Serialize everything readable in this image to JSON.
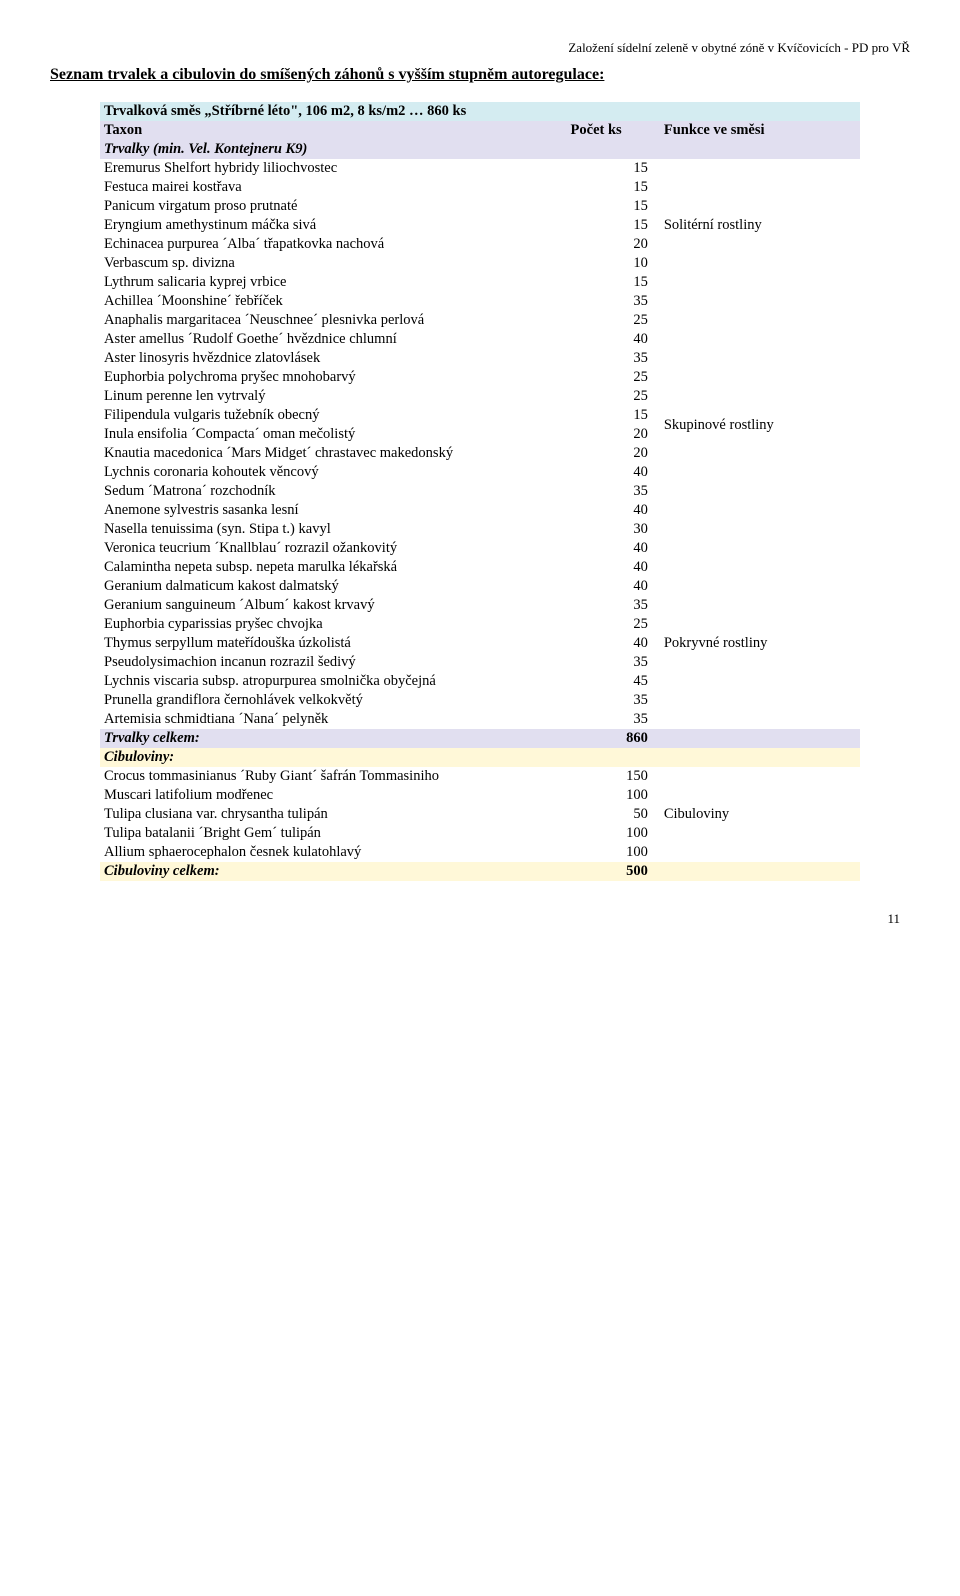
{
  "topRight": "Založení sídelní zeleně v obytné zóně v Kvíčovicích - PD pro VŘ",
  "heading": "Seznam trvalek a cibulovin do smíšených záhonů s vyšším stupněm autoregulace:",
  "colors": {
    "lightBlue": "#d4ecf1",
    "lavender": "#e1dff0",
    "lightYellow": "#fff8d8",
    "text": "#000000",
    "bg": "#ffffff"
  },
  "table": {
    "titleRow": {
      "text": "Trvalková směs „Stříbrné léto\", 106 m2, 8 ks/m2 … 860 ks",
      "bg": "#d4ecf1"
    },
    "headerRow": {
      "c1": "Taxon",
      "c2": "Počet ks",
      "c3": "Funkce ve směsi",
      "bg": "#e1dff0"
    },
    "group1": {
      "preRow": {
        "text": "Trvalky (min. Vel. Kontejneru K9)",
        "italicBold": true,
        "bg": "#e1dff0"
      },
      "rows": [
        {
          "name": "Eremurus Shelfort hybridy liliochvostec",
          "qty": "15"
        },
        {
          "name": "Festuca mairei kostřava",
          "qty": "15"
        },
        {
          "name": "Panicum virgatum proso prutnaté",
          "qty": "15"
        },
        {
          "name": "Eryngium amethystinum máčka sivá",
          "qty": "15"
        },
        {
          "name": "Echinacea purpurea ´Alba´ třapatkovka nachová",
          "qty": "20"
        },
        {
          "name": "Verbascum sp. divizna",
          "qty": "10"
        },
        {
          "name": "Lythrum salicaria kyprej vrbice",
          "qty": "15"
        }
      ],
      "label": "Solitérní rostliny",
      "labelRowIndex": 3
    },
    "group2": {
      "rows": [
        {
          "name": "Achillea ´Moonshine´ řebříček",
          "qty": "35"
        },
        {
          "name": "Anaphalis margaritacea ´Neuschnee´ plesnivka perlová",
          "qty": "25"
        },
        {
          "name": "Aster amellus ´Rudolf Goethe´ hvězdnice chlumní",
          "qty": "40"
        },
        {
          "name": "Aster linosyris hvězdnice zlatovlásek",
          "qty": "35"
        },
        {
          "name": "Euphorbia polychroma pryšec mnohobarvý",
          "qty": "25"
        },
        {
          "name": "Linum perenne len vytrvalý",
          "qty": "25"
        },
        {
          "name": "Filipendula vulgaris tužebník obecný",
          "qty": "15"
        },
        {
          "name": "Inula ensifolia ´Compacta´ oman mečolistý",
          "qty": "20"
        },
        {
          "name": "Knautia macedonica ´Mars Midget´ chrastavec makedonský",
          "qty": "20"
        },
        {
          "name": "Lychnis coronaria kohoutek věncový",
          "qty": "40"
        },
        {
          "name": "Sedum ´Matrona´ rozchodník",
          "qty": "35"
        },
        {
          "name": "Anemone sylvestris sasanka lesní",
          "qty": "40"
        },
        {
          "name": "Nasella tenuissima (syn. Stipa t.) kavyl",
          "qty": "30"
        },
        {
          "name": "Veronica teucrium ´Knallblau´ rozrazil ožankovitý",
          "qty": "40"
        }
      ],
      "label": "Skupinové rostliny",
      "labelRowIndex": 7
    },
    "group3": {
      "rows": [
        {
          "name": "Calamintha nepeta subsp. nepeta marulka lékařská",
          "qty": "40"
        },
        {
          "name": "Geranium dalmaticum kakost dalmatský",
          "qty": "40"
        },
        {
          "name": "Geranium sanguineum ´Album´ kakost krvavý",
          "qty": "35"
        },
        {
          "name": "Euphorbia cyparissias pryšec chvojka",
          "qty": "25"
        },
        {
          "name": "Thymus serpyllum mateřídouška úzkolistá",
          "qty": "40"
        },
        {
          "name": "Pseudolysimachion incanun rozrazil šedivý",
          "qty": "35"
        },
        {
          "name": "Lychnis viscaria subsp. atropurpurea smolnička obyčejná",
          "qty": "45"
        },
        {
          "name": "Prunella grandiflora černohlávek velkokvětý",
          "qty": "35"
        },
        {
          "name": "Artemisia schmidtiana ´Nana´ pelyněk",
          "qty": "35"
        }
      ],
      "label": "Pokryvné rostliny",
      "labelRowIndex": 4
    },
    "trvalkyTotal": {
      "label": "Trvalky celkem:",
      "qty": "860",
      "bg": "#e1dff0"
    },
    "cibulHeader": {
      "label": "Cibuloviny:",
      "bg": "#fff8d8"
    },
    "group4": {
      "rows": [
        {
          "name": "Crocus tommasinianus ´Ruby Giant´ šafrán Tommasiniho",
          "qty": "150"
        },
        {
          "name": "Muscari latifolium modřenec",
          "qty": "100"
        },
        {
          "name": "Tulipa clusiana var. chrysantha tulipán",
          "qty": "50"
        },
        {
          "name": "Tulipa batalanii ´Bright Gem´ tulipán",
          "qty": "100"
        },
        {
          "name": "Allium sphaerocephalon česnek kulatohlavý",
          "qty": "100"
        }
      ],
      "label": "Cibuloviny",
      "labelRowIndex": 2
    },
    "cibulTotal": {
      "label": "Cibuloviny celkem:",
      "qty": "500",
      "bg": "#fff8d8"
    }
  },
  "pageNum": "11"
}
